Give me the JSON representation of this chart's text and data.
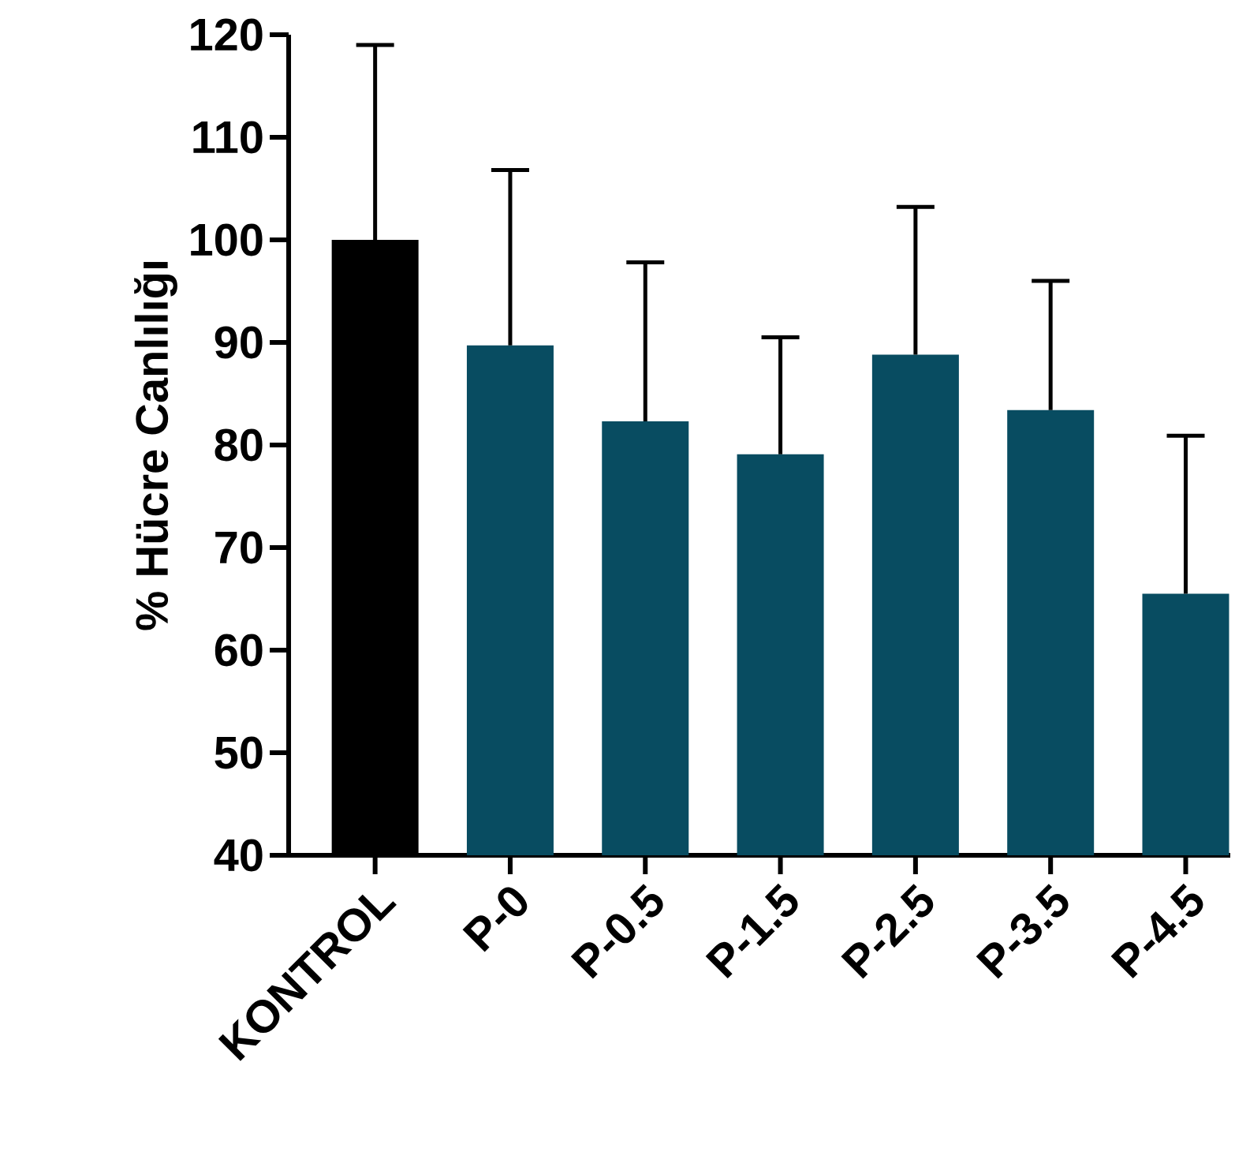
{
  "chart_data": {
    "type": "bar",
    "ylabel": "% Hücre Canlılığı",
    "categories": [
      "KONTROL",
      "P-0",
      "P-0.5",
      "P-1.5",
      "P-2.5",
      "P-3.5",
      "P-4.5"
    ],
    "values": [
      100,
      89.7,
      82.3,
      79.1,
      88.8,
      83.4,
      65.5
    ],
    "colors": [
      "#000000",
      "#084c61",
      "#084c61",
      "#084c61",
      "#084c61",
      "#084c61",
      "#084c61"
    ],
    "errors": [
      [
        100,
        119
      ],
      [
        89.7,
        106.8
      ],
      [
        82.3,
        97.8
      ],
      [
        79.1,
        90.5
      ],
      [
        88.8,
        103.2
      ],
      [
        83.4,
        96
      ],
      [
        65.5,
        80.9
      ]
    ],
    "ylim": [
      40,
      120
    ],
    "yticks": [
      40,
      50,
      60,
      70,
      80,
      90,
      100,
      110,
      120
    ]
  }
}
